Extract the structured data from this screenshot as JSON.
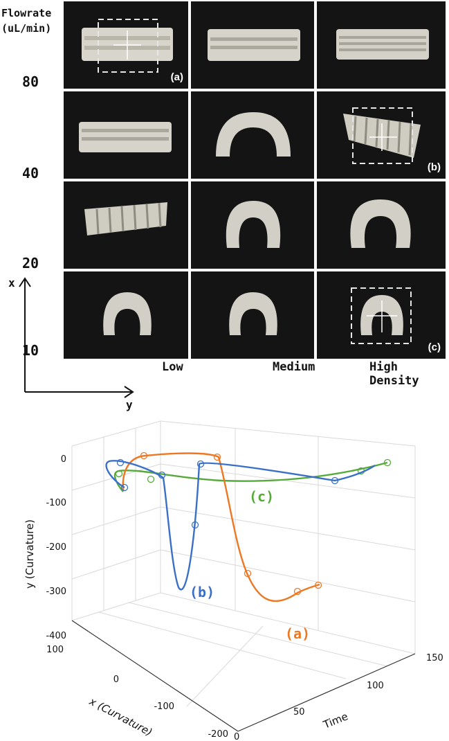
{
  "header": {
    "line1": "Flowrate",
    "line2": "(uL/min)"
  },
  "rows": [
    "80",
    "40",
    "20",
    "10"
  ],
  "columns": [
    "Low",
    "Medium",
    "High Density"
  ],
  "tags": {
    "a": "(a)",
    "b": "(b)",
    "c": "(c)"
  },
  "axes_sketch": {
    "vertical": "x",
    "horizontal": "y"
  },
  "colors": {
    "a": "#ee7722",
    "b": "#3a6fc8",
    "c": "#55aa3a",
    "photo_bg": "#141414"
  },
  "chart_data": {
    "type": "line",
    "zlabel": "y (Curvature)",
    "xlabel": "x (Curvature)",
    "timelabel": "Time",
    "z_ticks": [
      "0",
      "-100",
      "-200",
      "-300",
      "-400"
    ],
    "x_ticks": [
      "100",
      "0",
      "-100",
      "-200"
    ],
    "time_ticks": [
      "0",
      "50",
      "100",
      "150"
    ],
    "zlim": [
      -400,
      0
    ],
    "xlim": [
      -200,
      100
    ],
    "tlim": [
      0,
      150
    ],
    "series": [
      {
        "name": "(a)",
        "color": "#ee7722"
      },
      {
        "name": "(b)",
        "color": "#3a6fc8"
      },
      {
        "name": "(c)",
        "color": "#55aa3a"
      }
    ]
  }
}
